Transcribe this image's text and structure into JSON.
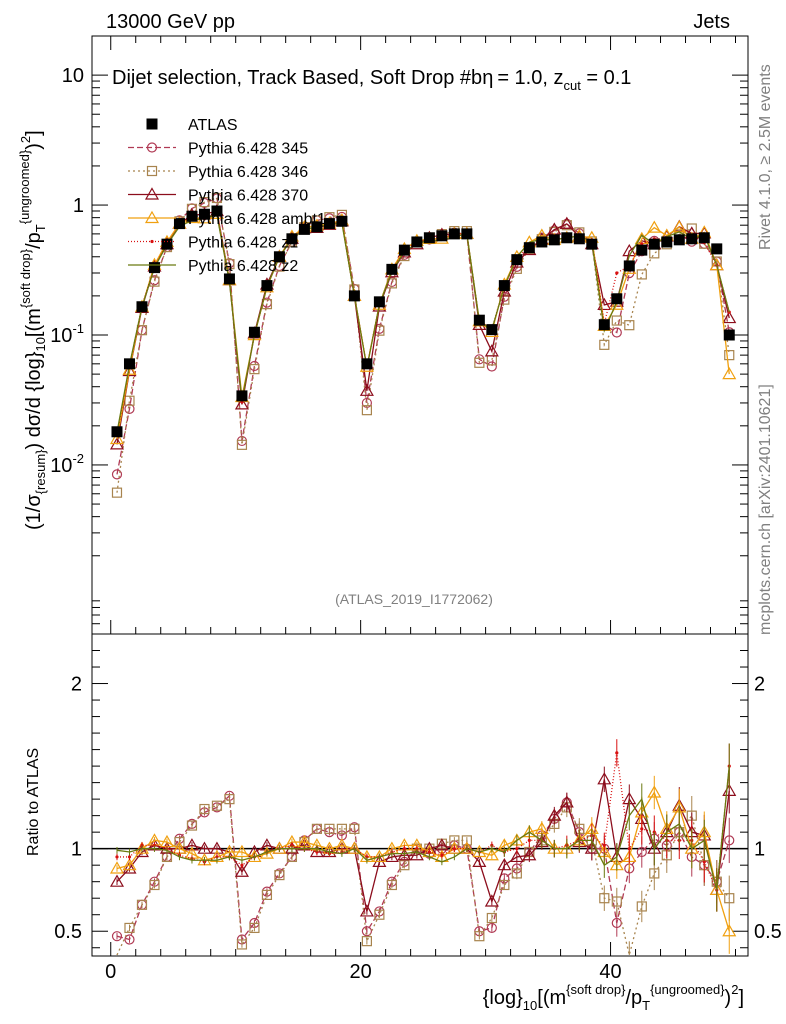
{
  "header": {
    "energy_label": "13000 GeV pp",
    "process_label": "Jets"
  },
  "side_labels": {
    "rivet": "Rivet 4.1.0, ≥ 2.5M events",
    "mcplots": "mcplots.cern.ch [arXiv:2401.10621]"
  },
  "analysis_id": "(ATLAS_2019_I1772062)",
  "colors": {
    "data": "#000000",
    "p345": "#b03a54",
    "p346": "#a8844e",
    "p370": "#8c0d1c",
    "ambt1": "#f0a010",
    "z1": "#d81010",
    "z2": "#6a7a10"
  },
  "chart_data": {
    "type": "line",
    "title_parts": {
      "pre": "Dijet selection, Track Based, Soft Drop #b",
      "mid": "= 1.0, z",
      "sub": "cut",
      "post": " = 0.1"
    },
    "ylabel_parts": {
      "a": "(1/σ",
      "a_sub": "{resum}",
      "b": ") dσ/d {log}",
      "b_sub": "10",
      "c": "[(m",
      "c_sup": "{soft drop}",
      "d": "/p",
      "d_sub": "T",
      "d_sup": "{ungroomed}",
      "e": ")",
      "e_sup": "2",
      "f": "]"
    },
    "xlabel_parts": {
      "a": "{log}",
      "a_sub": "10",
      "b": "[(m",
      "b_sup": "{soft drop}",
      "c": "/p",
      "c_sub": "T",
      "c_sup": "{ungroomed}",
      "d": ")",
      "d_sup": "2",
      "e": "]"
    },
    "ratio_ylabel": "Ratio to ATLAS",
    "xlim": [
      -1.5,
      51
    ],
    "ylim": [
      0.0005,
      20
    ],
    "ratio_ylim": [
      0.35,
      2.3
    ],
    "x_ticks": [
      "0",
      "20",
      "40"
    ],
    "y_ticks": [
      {
        "base": "10",
        "exp": "-2"
      },
      {
        "base": "10",
        "exp": "-1"
      },
      {
        "base": "1",
        "exp": ""
      },
      {
        "base": "10",
        "exp": ""
      }
    ],
    "ratio_ticks": [
      "0.5",
      "1",
      "2"
    ],
    "legend_title_dummy": "",
    "legend": [
      {
        "key": "data",
        "label": "ATLAS"
      },
      {
        "key": "p345",
        "label": "Pythia 6.428 345"
      },
      {
        "key": "p346",
        "label": "Pythia 6.428 346"
      },
      {
        "key": "p370",
        "label": "Pythia 6.428 370"
      },
      {
        "key": "ambt1",
        "label": "Pythia 6.428 ambt1"
      },
      {
        "key": "z1",
        "label": "Pythia 6.428 z1"
      },
      {
        "key": "z2",
        "label": "Pythia 6.428 z2"
      }
    ],
    "x": [
      0.5,
      1.5,
      2.5,
      3.5,
      4.5,
      5.5,
      6.5,
      7.5,
      8.5,
      9.5,
      10.5,
      11.5,
      12.5,
      13.5,
      14.5,
      15.5,
      16.5,
      17.5,
      18.5,
      19.5,
      20.5,
      21.5,
      22.5,
      23.5,
      24.5,
      25.5,
      26.5,
      27.5,
      28.5,
      29.5,
      30.5,
      31.5,
      32.5,
      33.5,
      34.5,
      35.5,
      36.5,
      37.5,
      38.5,
      39.5,
      40.5,
      41.5,
      42.5,
      43.5,
      44.5,
      45.5,
      46.5,
      47.5,
      48.5,
      49.5
    ],
    "data": [
      0.018,
      0.06,
      0.165,
      0.33,
      0.5,
      0.72,
      0.82,
      0.85,
      0.9,
      0.27,
      0.034,
      0.105,
      0.24,
      0.4,
      0.55,
      0.65,
      0.68,
      0.72,
      0.75,
      0.2,
      0.06,
      0.18,
      0.32,
      0.45,
      0.52,
      0.56,
      0.58,
      0.6,
      0.6,
      0.13,
      0.11,
      0.24,
      0.38,
      0.47,
      0.52,
      0.54,
      0.56,
      0.55,
      0.5,
      0.12,
      0.19,
      0.34,
      0.45,
      0.5,
      0.52,
      0.54,
      0.55,
      0.56,
      0.46,
      0.1
    ],
    "series": [
      {
        "key": "p345",
        "name": "Pythia 6.428 345",
        "marker": "circle",
        "dash": "6,3",
        "ratio": [
          0.47,
          0.45,
          0.66,
          0.8,
          0.95,
          1.06,
          1.15,
          1.22,
          1.25,
          1.32,
          0.45,
          0.55,
          0.74,
          0.85,
          0.95,
          1.05,
          1.12,
          1.1,
          1.08,
          1.13,
          0.5,
          0.62,
          0.8,
          0.92,
          1.0,
          0.97,
          1.0,
          1.02,
          1.0,
          0.5,
          0.52,
          0.82,
          0.88,
          0.98,
          1.08,
          1.18,
          1.28,
          1.1,
          1.0,
          1.0,
          0.55,
          0.88,
          0.98,
          1.06,
          1.02,
          1.1,
          0.95,
          0.9,
          0.8,
          1.05
        ]
      },
      {
        "key": "p346",
        "name": "Pythia 6.428 346",
        "marker": "square",
        "dash": "2,3",
        "ratio": [
          0.34,
          0.52,
          0.66,
          0.78,
          0.95,
          1.04,
          1.14,
          1.24,
          1.26,
          1.3,
          0.42,
          0.52,
          0.72,
          0.84,
          0.95,
          1.04,
          1.12,
          1.12,
          1.12,
          1.12,
          0.44,
          0.6,
          0.78,
          0.9,
          1.0,
          1.0,
          1.03,
          1.05,
          1.05,
          0.47,
          0.58,
          0.78,
          0.85,
          0.98,
          1.05,
          1.15,
          1.25,
          1.12,
          1.05,
          0.7,
          0.68,
          0.35,
          0.65,
          0.85,
          0.96,
          1.1,
          1.2,
          0.9,
          0.8,
          0.7
        ]
      },
      {
        "key": "p370",
        "name": "Pythia 6.428 370",
        "marker": "triangle",
        "dash": "",
        "ratio": [
          0.8,
          0.88,
          0.98,
          1.02,
          1.0,
          1.0,
          1.02,
          1.0,
          1.0,
          0.98,
          0.86,
          0.98,
          1.02,
          1.0,
          1.0,
          1.02,
          0.98,
          0.98,
          1.0,
          1.0,
          0.62,
          0.92,
          0.95,
          0.96,
          0.96,
          1.0,
          1.02,
          1.0,
          1.0,
          0.92,
          0.68,
          0.9,
          0.95,
          0.96,
          1.04,
          1.2,
          1.28,
          1.04,
          1.0,
          1.42,
          0.95,
          1.3,
          1.18,
          1.0,
          1.1,
          1.26,
          1.1,
          1.08,
          0.75,
          1.35
        ]
      },
      {
        "key": "ambt1",
        "name": "Pythia 6.428 ambt1",
        "marker": "triangle-open",
        "dash": "",
        "ratio": [
          0.88,
          0.9,
          1.0,
          1.05,
          1.04,
          1.0,
          0.97,
          0.93,
          0.95,
          0.98,
          0.98,
          0.95,
          0.97,
          1.0,
          1.04,
          1.04,
          1.02,
          1.0,
          1.02,
          1.0,
          0.95,
          0.95,
          1.0,
          1.02,
          1.02,
          0.98,
          0.95,
          1.0,
          1.0,
          0.98,
          0.96,
          1.02,
          1.05,
          1.1,
          1.12,
          1.0,
          1.0,
          1.05,
          1.12,
          0.98,
          0.9,
          0.95,
          1.22,
          1.34,
          1.12,
          1.25,
          1.0,
          1.1,
          0.75,
          0.5
        ]
      },
      {
        "key": "z1",
        "name": "Pythia 6.428 z1",
        "marker": "dot",
        "dash": "1,2",
        "ratio": [
          0.95,
          0.95,
          1.02,
          1.02,
          1.0,
          0.96,
          0.94,
          0.92,
          0.95,
          0.95,
          0.9,
          0.95,
          0.98,
          1.0,
          1.02,
          1.0,
          0.98,
          0.97,
          0.98,
          1.0,
          0.95,
          0.95,
          0.98,
          1.0,
          1.0,
          0.98,
          0.96,
          1.0,
          1.0,
          0.98,
          1.02,
          0.98,
          1.0,
          1.05,
          1.05,
          1.0,
          1.02,
          1.05,
          1.08,
          1.02,
          1.58,
          1.0,
          1.12,
          1.1,
          1.05,
          1.05,
          1.05,
          0.92,
          0.75,
          1.5
        ]
      },
      {
        "key": "z2",
        "name": "Pythia 6.428 z2",
        "marker": "none",
        "dash": "",
        "ratio": [
          0.99,
          0.98,
          1.0,
          1.0,
          0.99,
          0.95,
          0.93,
          0.93,
          0.93,
          0.95,
          0.93,
          0.95,
          0.98,
          1.0,
          1.0,
          1.0,
          1.0,
          0.98,
          0.97,
          1.0,
          0.93,
          0.95,
          0.97,
          0.97,
          0.98,
          0.95,
          0.92,
          0.95,
          1.0,
          0.98,
          1.0,
          0.98,
          1.05,
          1.1,
          1.05,
          1.0,
          1.0,
          1.05,
          1.05,
          0.9,
          0.95,
          1.2,
          1.3,
          1.0,
          1.1,
          1.15,
          1.0,
          1.05,
          0.75,
          1.5
        ]
      }
    ]
  }
}
